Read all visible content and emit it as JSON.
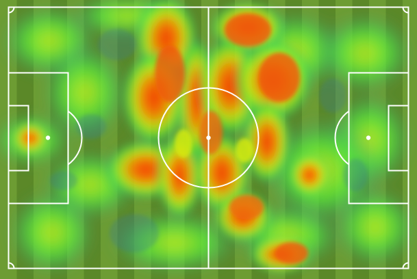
{
  "view": {
    "type": "football pitch heatmap",
    "theme": {
      "grass_light": "#6d9c33",
      "grass_dark": "#5a8728",
      "line": "#ffffff",
      "heat_low": "#3f7f87",
      "heat_mid": "#3ce646",
      "heat_high": "#e64b16",
      "heat_peak": "#ff2d00"
    },
    "pitch": {
      "halfway_line": true,
      "center_circle": true,
      "penalty_areas": 2,
      "goal_areas": 2,
      "penalty_spots": 2,
      "corner_arcs": 4
    },
    "heatmap": {
      "scale": "blue-green-yellow-red",
      "intensity_levels": [
        "low",
        "medium",
        "high"
      ]
    }
  }
}
